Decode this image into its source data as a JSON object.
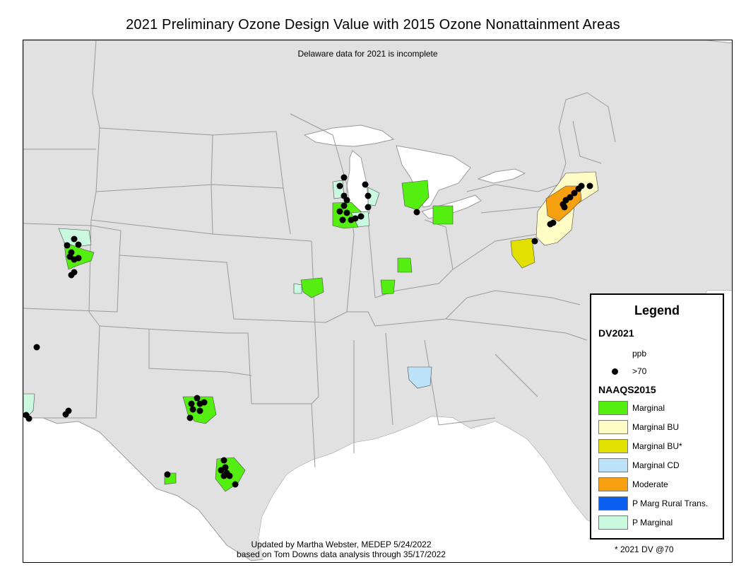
{
  "title": "2021 Preliminary Ozone Design Value with 2015 Ozone Nonattainment Areas",
  "note": "Delaware data for 2021 is incomplete",
  "credit": {
    "line1": "Updated by Martha Webster, MEDEP 5/24/2022",
    "line2": "based on Tom Downs data analysis through 35/17/2022"
  },
  "footnote": "* 2021 DV @70",
  "legend": {
    "title": "Legend",
    "dv_heading": "DV2021",
    "dv_unit": "ppb",
    "dv_symbol_label": ">70",
    "naaqs_heading": "NAAQS2015",
    "categories": [
      {
        "label": "Marginal",
        "color": "#55ee11"
      },
      {
        "label": "Marginal BU",
        "color": "#fefbc4"
      },
      {
        "label": "Marginal BU*",
        "color": "#e2e000"
      },
      {
        "label": "Marginal CD",
        "color": "#bde3fa"
      },
      {
        "label": "Moderate",
        "color": "#f7a010"
      },
      {
        "label": "P Marg Rural Trans.",
        "color": "#0a5ef0"
      },
      {
        "label": "P Marginal",
        "color": "#c9f9df"
      }
    ]
  },
  "colors": {
    "land": "#e1e1e1",
    "border": "#9a9a9a",
    "water": "#ffffff",
    "monitor": "#000000"
  }
}
